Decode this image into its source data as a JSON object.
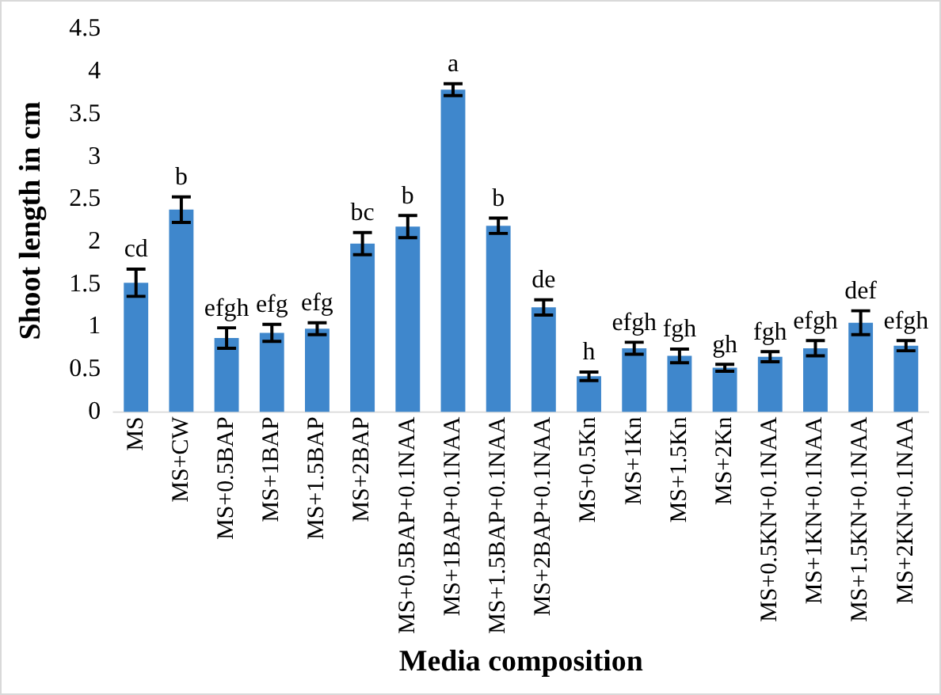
{
  "chart_data": {
    "type": "bar",
    "xlabel": "Media composition",
    "ylabel": "Shoot length in cm",
    "categories": [
      "MS",
      "MS+CW",
      "MS+0.5BAP",
      "MS+1BAP",
      "MS+1.5BAP",
      "MS+2BAP",
      "MS+0.5BAP+0.1NAA",
      "MS+1BAP+0.1NAA",
      "MS+1.5BAP+0.1NAA",
      "MS+2BAP+0.1NAA",
      "MS+0.5Kn",
      "MS+1Kn",
      "MS+1.5Kn",
      "MS+2Kn",
      "MS+0.5KN+0.1NAA",
      "MS+1KN+0.1NAA",
      "MS+1.5KN+0.1NAA",
      "MS+2KN+0.1NAA"
    ],
    "values": [
      1.52,
      2.38,
      0.87,
      0.93,
      0.98,
      1.98,
      2.18,
      3.79,
      2.19,
      1.23,
      0.42,
      0.75,
      0.66,
      0.52,
      0.65,
      0.75,
      1.05,
      0.78
    ],
    "errors": [
      0.16,
      0.15,
      0.12,
      0.1,
      0.07,
      0.13,
      0.13,
      0.07,
      0.09,
      0.09,
      0.05,
      0.07,
      0.08,
      0.04,
      0.06,
      0.09,
      0.14,
      0.06
    ],
    "color": "#3f87cc",
    "ylim": [
      0,
      4.5
    ],
    "yticks": [
      0,
      0.5,
      1,
      1.5,
      2,
      2.5,
      3,
      3.5,
      4,
      4.5
    ],
    "grid": false,
    "legend": false,
    "annotations": [
      {
        "text": "cd",
        "x": "MS",
        "y": 1.68
      },
      {
        "text": "b",
        "x": "MS+CW",
        "y": 2.53
      },
      {
        "text": "efgh",
        "x": "MS+0.5BAP",
        "y": 0.99
      },
      {
        "text": "efg",
        "x": "MS+1BAP",
        "y": 1.03
      },
      {
        "text": "efg",
        "x": "MS+1.5BAP",
        "y": 1.05
      },
      {
        "text": "bc",
        "x": "MS+2BAP",
        "y": 2.11
      },
      {
        "text": "b",
        "x": "MS+0.5BAP+0.1NAA",
        "y": 2.31
      },
      {
        "text": "a",
        "x": "MS+1BAP+0.1NAA",
        "y": 3.86
      },
      {
        "text": "b",
        "x": "MS+1.5BAP+0.1NAA",
        "y": 2.28
      },
      {
        "text": "de",
        "x": "MS+2BAP+0.1NAA",
        "y": 1.32
      },
      {
        "text": "h",
        "x": "MS+0.5Kn",
        "y": 0.47
      },
      {
        "text": "efgh",
        "x": "MS+1Kn",
        "y": 0.82
      },
      {
        "text": "fgh",
        "x": "MS+1.5Kn",
        "y": 0.74
      },
      {
        "text": "gh",
        "x": "MS+2Kn",
        "y": 0.56
      },
      {
        "text": "fgh",
        "x": "MS+0.5KN+0.1NAA",
        "y": 0.71
      },
      {
        "text": "efgh",
        "x": "MS+1KN+0.1NAA",
        "y": 0.84
      },
      {
        "text": "def",
        "x": "MS+1.5KN+0.1NAA",
        "y": 1.19
      },
      {
        "text": "efgh",
        "x": "MS+2KN+0.1NAA",
        "y": 0.84
      }
    ]
  }
}
